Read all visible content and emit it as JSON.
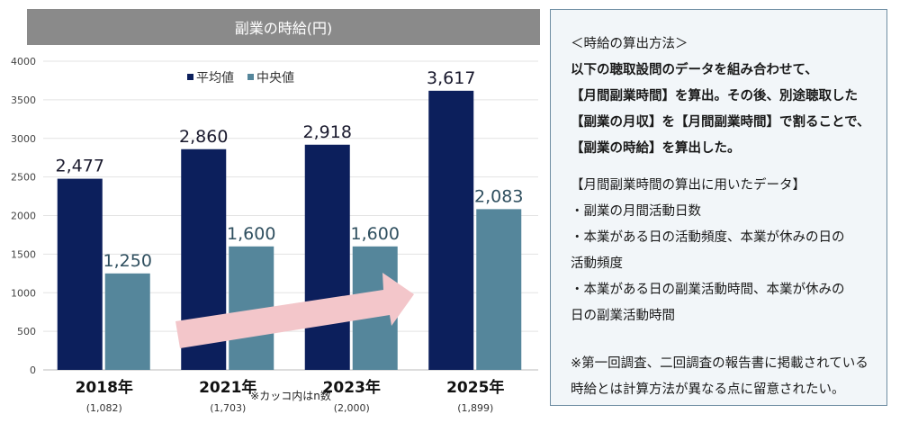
{
  "chart_data": {
    "type": "bar",
    "title": "副業の時給(円)",
    "categories": [
      "2018年",
      "2021年",
      "2023年",
      "2025年"
    ],
    "sample_sizes": [
      "(1,082)",
      "(1,703)",
      "(2,000)",
      "(1,899)"
    ],
    "series": [
      {
        "name": "平均値",
        "color": "#0c1f5c",
        "values": [
          2477,
          2860,
          2918,
          3617
        ],
        "labels": [
          "2,477",
          "2,860",
          "2,918",
          "3,617"
        ]
      },
      {
        "name": "中央値",
        "color": "#55869b",
        "values": [
          1250,
          1600,
          1600,
          2083
        ],
        "labels": [
          "1,250",
          "1,600",
          "1,600",
          "2,083"
        ]
      }
    ],
    "yticks": [
      0,
      500,
      1000,
      1500,
      2000,
      2500,
      3000,
      3500,
      4000
    ],
    "ylim": [
      0,
      4000
    ],
    "grid": true,
    "legend": "top-center",
    "footnote": "※カッコ内はn数",
    "annotation": "upward trend arrow"
  },
  "note": {
    "heading": "＜時給の算出方法＞",
    "lines": [
      "以下の聴取設問のデータを組み合わせて、",
      "【月間副業時間】を算出。その後、別途聴取した",
      "【副業の月収】を【月間副業時間】で割ることで、",
      "【副業の時給】を算出した。"
    ],
    "data_heading": "【月間副業時間の算出に用いたデータ】",
    "data_items": [
      "・副業の月間活動日数",
      "・本業がある日の活動頻度、本業が休みの日の",
      "活動頻度",
      "・本業がある日の副業活動時間、本業が休みの",
      "日の副業活動時間"
    ],
    "remark": [
      "※第一回調査、二回調査の報告書に掲載されている",
      "時給とは計算方法が異なる点に留意されたい。"
    ]
  }
}
